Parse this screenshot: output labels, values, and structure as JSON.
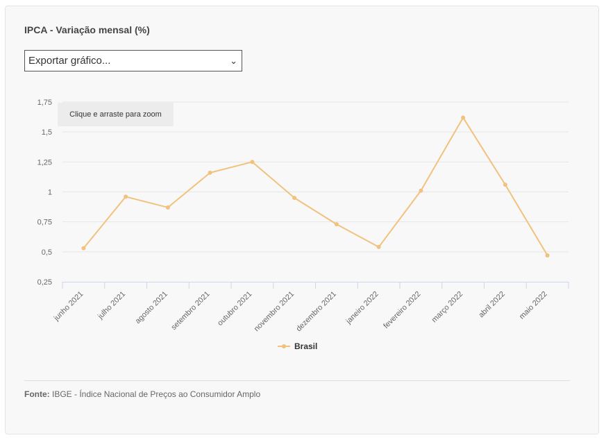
{
  "title": "IPCA - Variação mensal (%)",
  "export_select": {
    "value": "Exportar gráfico..."
  },
  "zoom_hint": "Clique e arraste para zoom",
  "colors": {
    "series": "#f1c27d",
    "grid": "#e6e6e6",
    "axis": "#ccd6eb"
  },
  "chart_data": {
    "type": "line",
    "title": "IPCA - Variação mensal (%)",
    "categories": [
      "junho 2021",
      "julho 2021",
      "agosto 2021",
      "setembro 2021",
      "outubro 2021",
      "novembro 2021",
      "dezembro 2021",
      "janeiro 2022",
      "fevereiro 2022",
      "março 2022",
      "abril 2022",
      "maio 2022"
    ],
    "series": [
      {
        "name": "Brasil",
        "values": [
          0.53,
          0.96,
          0.87,
          1.16,
          1.25,
          0.95,
          0.73,
          0.54,
          1.01,
          1.62,
          1.06,
          0.47
        ]
      }
    ],
    "yticks": [
      "1,75",
      "1,5",
      "1,25",
      "1",
      "0,75",
      "0,5",
      "0,25"
    ],
    "ylim": [
      0.25,
      1.75
    ],
    "grid": true,
    "legend": "bottom-center"
  },
  "source": {
    "label": "Fonte:",
    "text": "IBGE - Índice Nacional de Preços ao Consumidor Amplo"
  }
}
